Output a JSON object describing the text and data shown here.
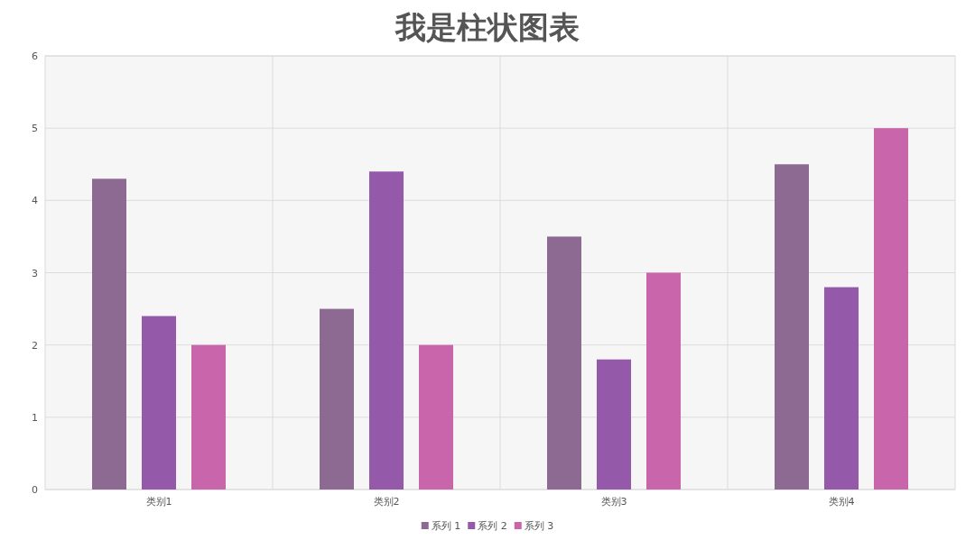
{
  "chart_data": {
    "type": "bar",
    "title": "我是柱状图表",
    "categories": [
      "类别1",
      "类别2",
      "类别3",
      "类别4"
    ],
    "series": [
      {
        "name": "系列 1",
        "color": "#8c6a92",
        "values": [
          4.3,
          2.5,
          3.5,
          4.5
        ]
      },
      {
        "name": "系列 2",
        "color": "#9459a8",
        "values": [
          2.4,
          4.4,
          1.8,
          2.8
        ]
      },
      {
        "name": "系列 3",
        "color": "#c965aa",
        "values": [
          2,
          2,
          3,
          5
        ]
      }
    ],
    "ylim": [
      0,
      6
    ],
    "yticks": [
      0,
      1,
      2,
      3,
      4,
      5,
      6
    ],
    "grid": true,
    "legend": "bottom"
  }
}
